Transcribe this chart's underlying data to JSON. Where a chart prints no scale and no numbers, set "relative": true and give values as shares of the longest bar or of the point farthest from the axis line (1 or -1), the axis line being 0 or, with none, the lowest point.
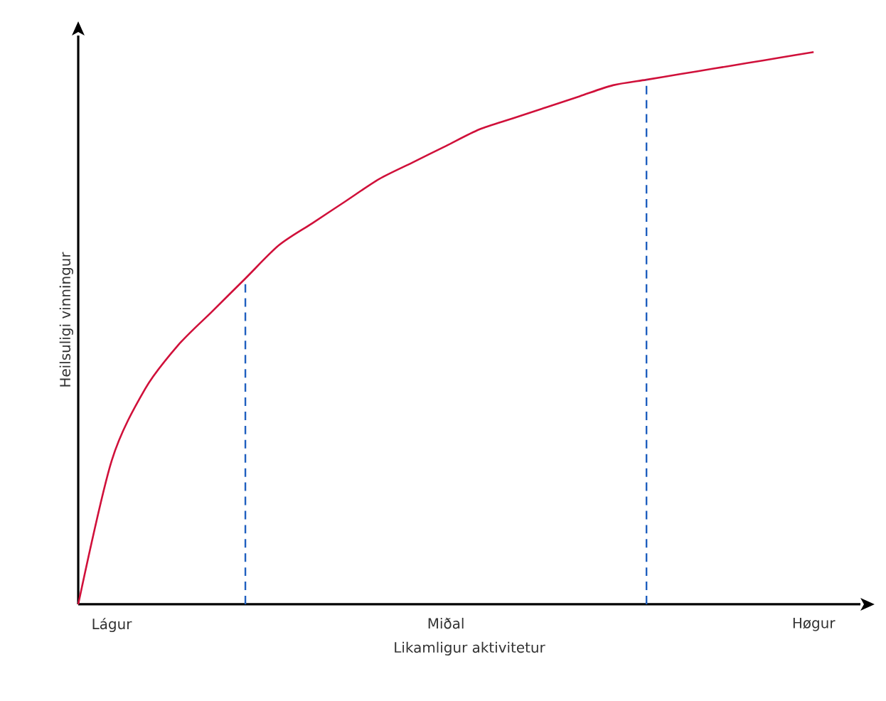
{
  "chart_data": {
    "type": "line",
    "relative": true,
    "xlabel": "Likamligur aktivitetur",
    "ylabel": "Heilsuligi vinningur",
    "categories": [
      null,
      "Lágur",
      null,
      null,
      null,
      null,
      null,
      null,
      null,
      null,
      null,
      "Miðal",
      null,
      null,
      null,
      null,
      null,
      null,
      null,
      null,
      null,
      null,
      "Høgur"
    ],
    "series": [
      {
        "color": "#d0103a",
        "values": [
          0,
          0.26,
          0.39,
          0.47,
          0.53,
          0.59,
          0.65,
          0.69,
          0.73,
          0.77,
          0.8,
          0.83,
          0.86,
          0.88,
          0.9,
          0.92,
          0.94,
          0.95,
          0.96,
          0.97,
          0.98,
          0.99,
          1.0
        ]
      }
    ],
    "marker": "none",
    "line_style": "solid",
    "grid": false
  }
}
